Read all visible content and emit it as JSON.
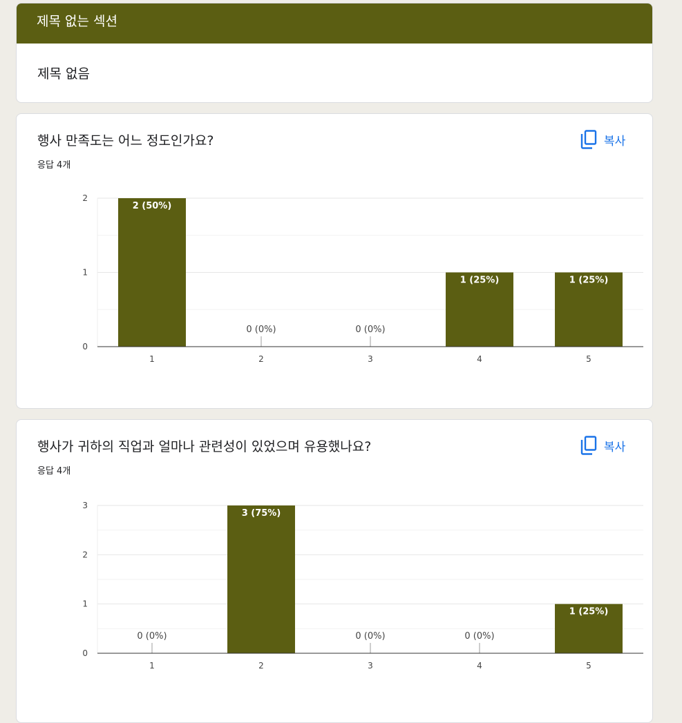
{
  "section": {
    "title": "제목 없는 섹션",
    "description": "제목 없음"
  },
  "questions": [
    {
      "title": "행사 만족도는 어느 정도인가요?",
      "response_count": "응답 4개",
      "copy_label": "복사"
    },
    {
      "title": "행사가 귀하의 직업과 얼마나 관련성이 있었으며 유용했나요?",
      "response_count": "응답 4개",
      "copy_label": "복사"
    }
  ],
  "colors": {
    "accent": "#5b5e12",
    "link": "#1a73e8"
  },
  "icons": {
    "copy": "copy-icon"
  },
  "chart_data": [
    {
      "type": "bar",
      "categories": [
        "1",
        "2",
        "3",
        "4",
        "5"
      ],
      "values": [
        2,
        0,
        0,
        1,
        1
      ],
      "data_labels": [
        "2 (50%)",
        "0 (0%)",
        "0 (0%)",
        "1 (25%)",
        "1 (25%)"
      ],
      "yticks": [
        0,
        1,
        2
      ],
      "ylim": [
        0,
        2
      ],
      "grid": true,
      "color": "#5b5e12"
    },
    {
      "type": "bar",
      "categories": [
        "1",
        "2",
        "3",
        "4",
        "5"
      ],
      "values": [
        0,
        3,
        0,
        0,
        1
      ],
      "data_labels": [
        "0 (0%)",
        "3 (75%)",
        "0 (0%)",
        "0 (0%)",
        "1 (25%)"
      ],
      "yticks": [
        0,
        1,
        2,
        3
      ],
      "ylim": [
        0,
        3
      ],
      "grid": true,
      "color": "#5b5e12"
    }
  ]
}
